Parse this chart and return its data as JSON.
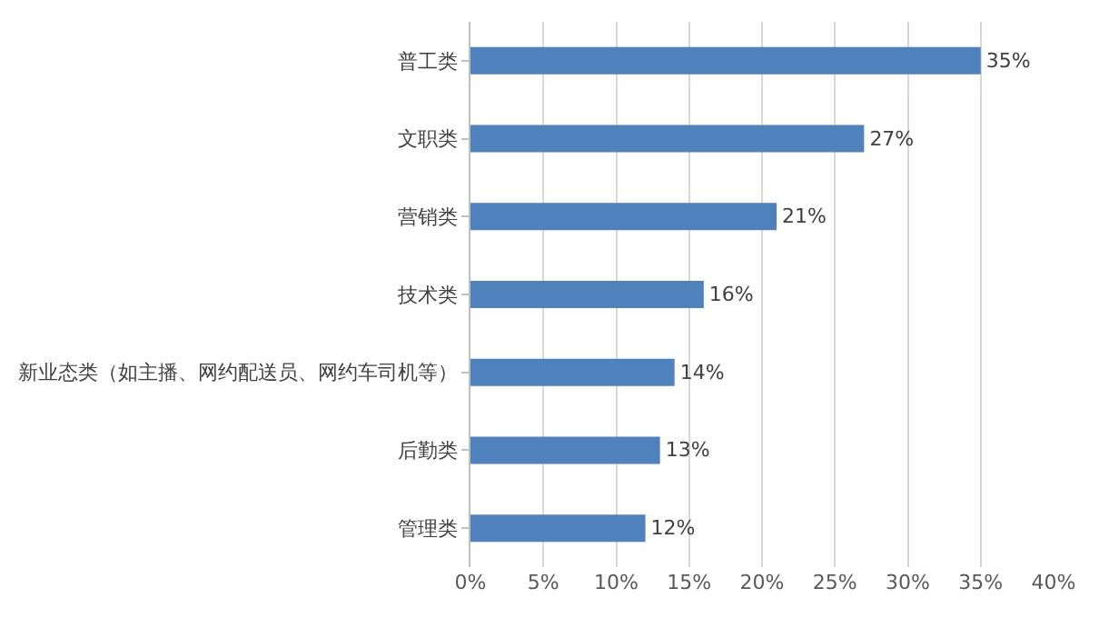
{
  "chart_data": {
    "type": "bar",
    "orientation": "horizontal",
    "categories": [
      "普工类",
      "文职类",
      "营销类",
      "技术类",
      "新业态类（如主播、网约配送员、网约车司机等）",
      "后勤类",
      "管理类"
    ],
    "values": [
      35,
      27,
      21,
      16,
      14,
      13,
      12
    ],
    "value_labels": [
      "35%",
      "27%",
      "21%",
      "16%",
      "14%",
      "13%",
      "12%"
    ],
    "color": "#4f81bd",
    "xlim": [
      0,
      40
    ],
    "xticks": [
      {
        "value": 0,
        "label": "0%"
      },
      {
        "value": 5,
        "label": "5%"
      },
      {
        "value": 10,
        "label": "10%"
      },
      {
        "value": 15,
        "label": "15%"
      },
      {
        "value": 20,
        "label": "20%"
      },
      {
        "value": 25,
        "label": "25%"
      },
      {
        "value": 30,
        "label": "30%"
      },
      {
        "value": 35,
        "label": "35%"
      },
      {
        "value": 40,
        "label": "40%"
      }
    ],
    "grid": "x",
    "legend": false
  }
}
